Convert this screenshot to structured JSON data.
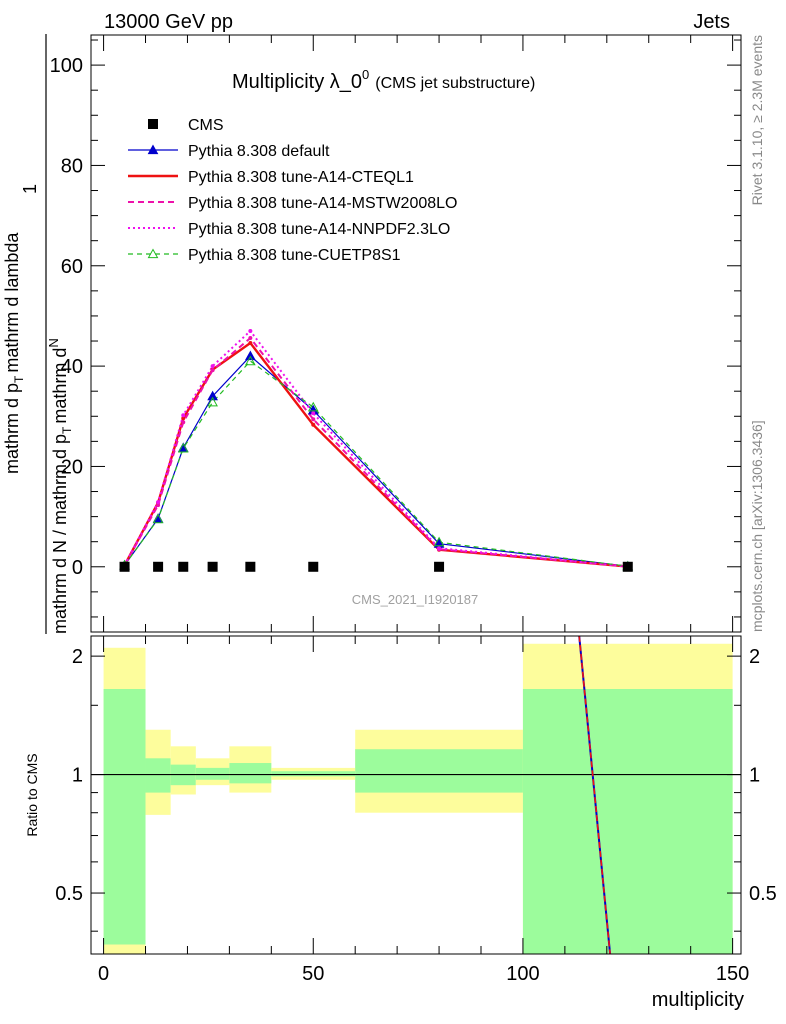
{
  "header": {
    "left_label": "13000 GeV pp",
    "right_label": "Jets"
  },
  "side_labels": {
    "rivet": "Rivet 3.1.10, ≥ 2.3M events",
    "mcplots": "mcplots.cern.ch [arXiv:1306.3436]"
  },
  "watermark": "CMS_2021_I1920187",
  "colors": {
    "cms": "#000000",
    "default": "#0000cc",
    "cteql1": "#ee1111",
    "mstw": "#ee11aa",
    "nnpdf": "#ee11ee",
    "cuetp8s1": "#22bb22",
    "band_inner": "#9cfc9c",
    "band_outer": "#fdfd9c"
  },
  "chart_data": [
    {
      "type": "line",
      "title": "Multiplicity λ_0",
      "title_sup": "0",
      "subtitle": "(CMS jet substructure)",
      "ylabel_numerator": "1",
      "ylabel_denominator": "mathrm d N / mathrm d p",
      "ylabel_numerator_full": "mathrm d",
      "ylabel_numerator_N": "N",
      "ylabel_denominator_full": "mathrm d p",
      "ylabel_T": "T",
      "ylabel_rest": "mathrm d lambda",
      "ylabel_T2": "T",
      "ylabel_mid": "mathrm d p",
      "xlim": [
        -3,
        152
      ],
      "ylim": [
        -13,
        106
      ],
      "y_ticks": [
        0,
        20,
        40,
        60,
        80,
        100
      ],
      "y_tick_labels": [
        "0",
        "20",
        "40",
        "60",
        "80",
        "100"
      ],
      "legend_position": "top-left",
      "series": [
        {
          "name": "CMS",
          "style": "markers",
          "x": [
            5,
            13,
            19,
            26,
            35,
            50,
            80,
            125
          ],
          "y": [
            0,
            0,
            0,
            0,
            0,
            0,
            0,
            0
          ]
        },
        {
          "name": "Pythia 8.308 default",
          "style": "solid-triangle",
          "x": [
            5,
            13,
            19,
            26,
            35,
            50,
            80,
            125
          ],
          "y": [
            0.3,
            9.6,
            23.7,
            34.0,
            42.0,
            31.2,
            4.6,
            0.1
          ]
        },
        {
          "name": "Pythia 8.308 tune-A14-CTEQL1",
          "style": "solid",
          "x": [
            5,
            13,
            19,
            26,
            35,
            50,
            80,
            125
          ],
          "y": [
            0.3,
            12.8,
            29.6,
            39.3,
            44.6,
            28.3,
            3.4,
            0.05
          ]
        },
        {
          "name": "Pythia 8.308 tune-A14-MSTW2008LO",
          "style": "dashed",
          "x": [
            5,
            13,
            19,
            26,
            35,
            50,
            80,
            125
          ],
          "y": [
            0.3,
            12.3,
            28.8,
            39.2,
            45.6,
            29.4,
            3.5,
            0.05
          ]
        },
        {
          "name": "Pythia 8.308 tune-A14-NNPDF2.3LO",
          "style": "dotted",
          "x": [
            5,
            13,
            19,
            26,
            35,
            50,
            80,
            125
          ],
          "y": [
            0.3,
            12.9,
            30.2,
            40.0,
            47.0,
            30.6,
            3.7,
            0.05
          ]
        },
        {
          "name": "Pythia 8.308 tune-CUETP8S1",
          "style": "dashed-open-triangle",
          "x": [
            5,
            13,
            19,
            26,
            35,
            50,
            80,
            125
          ],
          "y": [
            0.3,
            9.5,
            23.6,
            32.8,
            41.0,
            31.8,
            4.9,
            0.1
          ]
        }
      ]
    },
    {
      "type": "line",
      "ylabel": "Ratio to CMS",
      "xlabel": "multiplicity",
      "xlim": [
        -3,
        152
      ],
      "ylim": [
        0.35,
        2.25
      ],
      "x_ticks": [
        0,
        50,
        100,
        150
      ],
      "x_tick_labels": [
        "0",
        "50",
        "100",
        "150"
      ],
      "y_ticks": [
        0.5,
        1,
        2
      ],
      "y_tick_labels": [
        "0.5",
        "1",
        "2"
      ],
      "bands": [
        {
          "x0": 0,
          "x1": 10,
          "inner": [
            0.37,
            1.65
          ],
          "outer": [
            0.3,
            2.1
          ]
        },
        {
          "x0": 10,
          "x1": 16,
          "inner": [
            0.9,
            1.1
          ],
          "outer": [
            0.79,
            1.3
          ]
        },
        {
          "x0": 16,
          "x1": 22,
          "inner": [
            0.94,
            1.06
          ],
          "outer": [
            0.89,
            1.18
          ]
        },
        {
          "x0": 22,
          "x1": 30,
          "inner": [
            0.97,
            1.04
          ],
          "outer": [
            0.94,
            1.1
          ]
        },
        {
          "x0": 30,
          "x1": 40,
          "inner": [
            0.95,
            1.07
          ],
          "outer": [
            0.9,
            1.18
          ]
        },
        {
          "x0": 40,
          "x1": 60,
          "inner": [
            0.99,
            1.02
          ],
          "outer": [
            0.97,
            1.04
          ]
        },
        {
          "x0": 60,
          "x1": 100,
          "inner": [
            0.9,
            1.16
          ],
          "outer": [
            0.8,
            1.3
          ]
        },
        {
          "x0": 100,
          "x1": 150,
          "inner": [
            0.3,
            1.65
          ],
          "outer": [
            0.3,
            2.15
          ]
        }
      ],
      "ratio_line": {
        "x": [
          113,
          123
        ],
        "y": [
          2.5,
          0.2
        ]
      }
    }
  ]
}
